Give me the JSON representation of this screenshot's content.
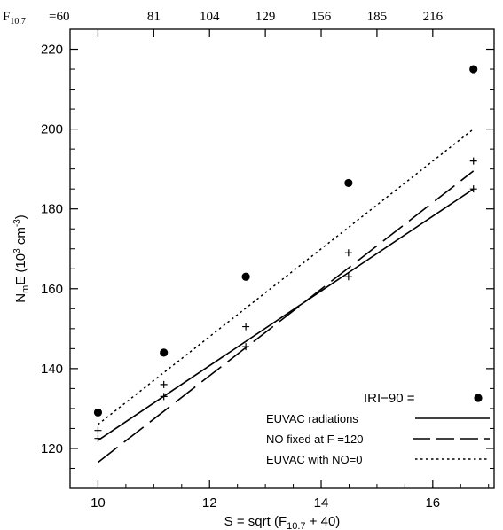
{
  "chart_data": {
    "type": "line",
    "x_axis": {
      "label_main": "S = sqrt (F",
      "label_sub": "10.7",
      "label_tail": " + 40)",
      "range": [
        9.5,
        17.1
      ],
      "ticks": [
        10,
        12,
        14,
        16
      ]
    },
    "y_axis": {
      "label_prefix": "N",
      "label_sub": "m",
      "label_mid": "E (10",
      "label_sup": "3",
      "label_unit": " cm",
      "label_sup2": "-3",
      "label_close": ")",
      "range": [
        110,
        225
      ],
      "ticks": [
        120,
        140,
        160,
        180,
        200,
        220
      ]
    },
    "top_axis": {
      "prefix": "F",
      "prefix_sub": "10.7",
      "ticks": [
        {
          "f107": 60,
          "label": "=60"
        },
        {
          "f107": 81,
          "label": "81"
        },
        {
          "f107": 104,
          "label": "104"
        },
        {
          "f107": 129,
          "label": "129"
        },
        {
          "f107": 156,
          "label": "156"
        },
        {
          "f107": 185,
          "label": "185"
        },
        {
          "f107": 216,
          "label": "216"
        }
      ]
    },
    "series": [
      {
        "name": "IRI−90",
        "legend_label": "IRI−90   =",
        "style": "dots",
        "points": [
          [
            10.0,
            129
          ],
          [
            11.18,
            144
          ],
          [
            12.65,
            163
          ],
          [
            14.49,
            186.5
          ],
          [
            16.73,
            215
          ]
        ]
      },
      {
        "name": "EUVAC radiations",
        "style": "solid",
        "line": [
          [
            10.0,
            122
          ],
          [
            16.73,
            185
          ]
        ],
        "markers": [
          [
            10.0,
            122.5
          ],
          [
            11.18,
            133
          ],
          [
            12.65,
            145.5
          ],
          [
            14.49,
            163
          ],
          [
            16.73,
            185
          ]
        ]
      },
      {
        "name": "NO fixed at F =120",
        "style": "longdash",
        "line": [
          [
            10.0,
            116.5
          ],
          [
            16.73,
            189.5
          ]
        ],
        "markers": [
          [
            10.0,
            124.5
          ],
          [
            11.18,
            136
          ],
          [
            12.65,
            150.5
          ],
          [
            14.49,
            169
          ],
          [
            16.73,
            192
          ]
        ]
      },
      {
        "name": "EUVAC with NO=0",
        "style": "dotted",
        "line": [
          [
            10.0,
            126
          ],
          [
            16.73,
            200
          ]
        ]
      }
    ],
    "legend_position": "bottom-right",
    "grid": false
  }
}
